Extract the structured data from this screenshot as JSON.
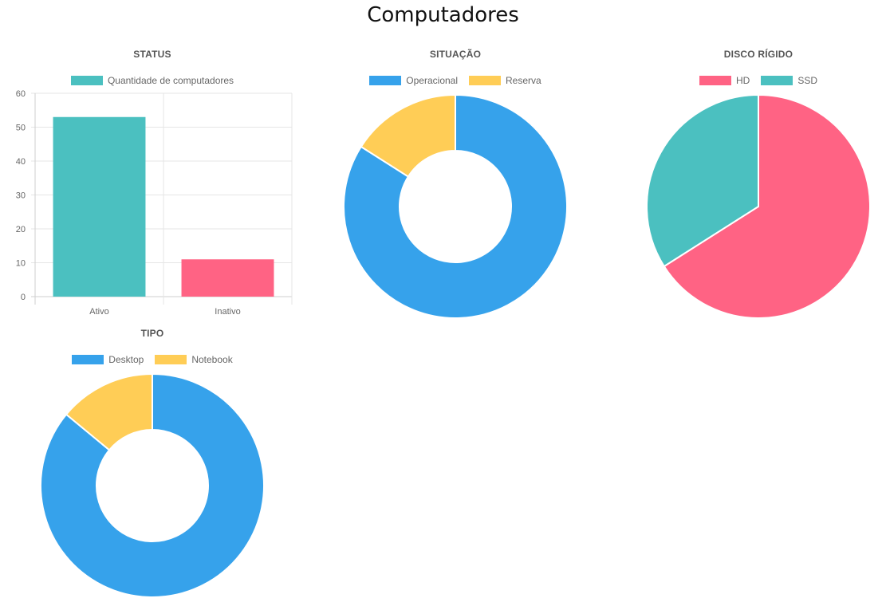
{
  "page": {
    "title": "Computadores"
  },
  "colors": {
    "teal": "#4bc0c0",
    "pink": "#ff6384",
    "blue": "#36a2eb",
    "yellow": "#ffcd56"
  },
  "chart_data": [
    {
      "id": "status",
      "type": "bar",
      "title": "STATUS",
      "categories": [
        "Ativo",
        "Inativo"
      ],
      "series": [
        {
          "name": "Quantidade de computadores",
          "values": [
            53,
            11
          ]
        }
      ],
      "bar_colors": [
        "#4bc0c0",
        "#ff6384"
      ],
      "legend_color": "#4bc0c0",
      "ylim": [
        0,
        60
      ],
      "yticks": [
        0,
        10,
        20,
        30,
        40,
        50,
        60
      ],
      "grid": true,
      "legend": "top"
    },
    {
      "id": "situacao",
      "type": "pie",
      "donut": true,
      "title": "SITUAÇÃO",
      "labels": [
        "Operacional",
        "Reserva"
      ],
      "values": [
        84,
        16
      ],
      "colors": [
        "#36a2eb",
        "#ffcd56"
      ],
      "legend": "top"
    },
    {
      "id": "disco",
      "type": "pie",
      "donut": false,
      "title": "DISCO RÍGIDO",
      "labels": [
        "HD",
        "SSD"
      ],
      "values": [
        66,
        34
      ],
      "colors": [
        "#ff6384",
        "#4bc0c0"
      ],
      "legend": "top"
    },
    {
      "id": "tipo",
      "type": "pie",
      "donut": true,
      "title": "TIPO",
      "labels": [
        "Desktop",
        "Notebook"
      ],
      "values": [
        86,
        14
      ],
      "colors": [
        "#36a2eb",
        "#ffcd56"
      ],
      "legend": "top"
    }
  ]
}
